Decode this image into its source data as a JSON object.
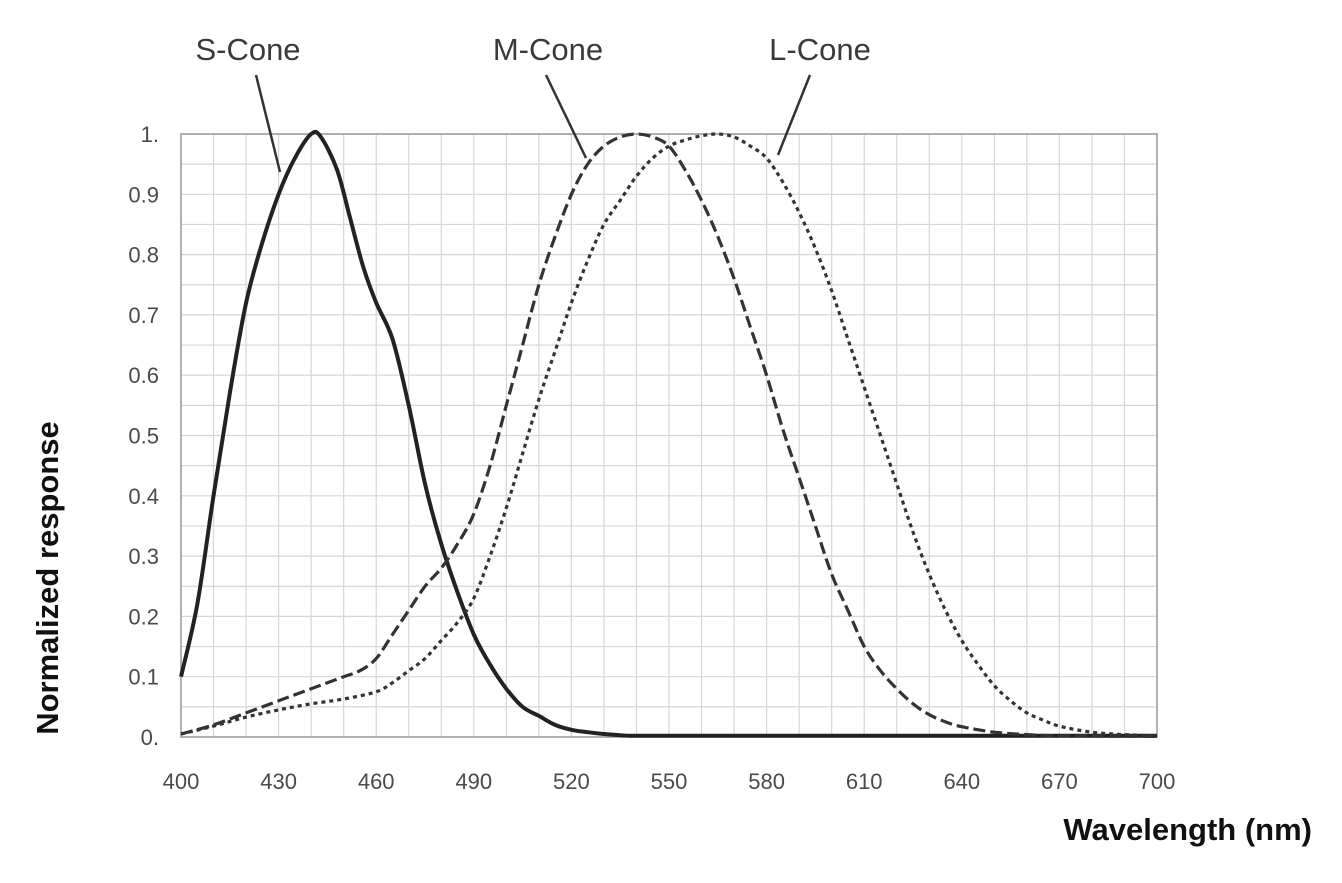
{
  "chart_data": {
    "type": "line",
    "title": "",
    "xlabel": "Wavelength (nm)",
    "ylabel": "Normalized response",
    "xlim": [
      400,
      700
    ],
    "ylim": [
      0,
      1
    ],
    "grid": true,
    "x_ticks": [
      "400",
      "430",
      "460",
      "490",
      "520",
      "550",
      "580",
      "610",
      "640",
      "670",
      "700"
    ],
    "x_tick_values": [
      400,
      430,
      460,
      490,
      520,
      550,
      580,
      610,
      640,
      670,
      700
    ],
    "y_ticks": [
      "0.",
      "0.1",
      "0.2",
      "0.3",
      "0.4",
      "0.5",
      "0.6",
      "0.7",
      "0.8",
      "0.9",
      "1."
    ],
    "y_tick_values": [
      0,
      0.1,
      0.2,
      0.3,
      0.4,
      0.5,
      0.6,
      0.7,
      0.8,
      0.9,
      1.0
    ],
    "series": [
      {
        "name": "S-Cone",
        "style": "solid",
        "color": "#222222",
        "points": [
          [
            400,
            0.1
          ],
          [
            405,
            0.22
          ],
          [
            410,
            0.4
          ],
          [
            415,
            0.57
          ],
          [
            420,
            0.72
          ],
          [
            425,
            0.82
          ],
          [
            430,
            0.9
          ],
          [
            435,
            0.96
          ],
          [
            440,
            1.0
          ],
          [
            443,
            0.995
          ],
          [
            448,
            0.94
          ],
          [
            452,
            0.86
          ],
          [
            456,
            0.78
          ],
          [
            460,
            0.72
          ],
          [
            465,
            0.66
          ],
          [
            470,
            0.55
          ],
          [
            475,
            0.42
          ],
          [
            480,
            0.32
          ],
          [
            485,
            0.24
          ],
          [
            490,
            0.17
          ],
          [
            495,
            0.12
          ],
          [
            500,
            0.08
          ],
          [
            505,
            0.05
          ],
          [
            510,
            0.035
          ],
          [
            515,
            0.02
          ],
          [
            520,
            0.012
          ],
          [
            525,
            0.008
          ],
          [
            530,
            0.005
          ],
          [
            535,
            0.003
          ],
          [
            540,
            0.002
          ],
          [
            560,
            0.002
          ],
          [
            600,
            0.002
          ],
          [
            650,
            0.002
          ],
          [
            700,
            0.002
          ]
        ]
      },
      {
        "name": "M-Cone",
        "style": "dashed",
        "color": "#333333",
        "points": [
          [
            400,
            0.005
          ],
          [
            410,
            0.02
          ],
          [
            420,
            0.04
          ],
          [
            430,
            0.06
          ],
          [
            440,
            0.08
          ],
          [
            450,
            0.1
          ],
          [
            455,
            0.11
          ],
          [
            460,
            0.13
          ],
          [
            465,
            0.17
          ],
          [
            470,
            0.21
          ],
          [
            475,
            0.25
          ],
          [
            480,
            0.28
          ],
          [
            485,
            0.32
          ],
          [
            490,
            0.37
          ],
          [
            495,
            0.45
          ],
          [
            500,
            0.55
          ],
          [
            505,
            0.65
          ],
          [
            510,
            0.75
          ],
          [
            515,
            0.83
          ],
          [
            520,
            0.9
          ],
          [
            525,
            0.95
          ],
          [
            530,
            0.98
          ],
          [
            535,
            0.995
          ],
          [
            540,
            1.0
          ],
          [
            545,
            0.995
          ],
          [
            550,
            0.98
          ],
          [
            555,
            0.94
          ],
          [
            560,
            0.89
          ],
          [
            565,
            0.83
          ],
          [
            570,
            0.76
          ],
          [
            575,
            0.68
          ],
          [
            580,
            0.6
          ],
          [
            585,
            0.51
          ],
          [
            590,
            0.43
          ],
          [
            595,
            0.35
          ],
          [
            600,
            0.27
          ],
          [
            605,
            0.21
          ],
          [
            610,
            0.15
          ],
          [
            615,
            0.11
          ],
          [
            620,
            0.08
          ],
          [
            625,
            0.055
          ],
          [
            630,
            0.037
          ],
          [
            635,
            0.025
          ],
          [
            640,
            0.017
          ],
          [
            650,
            0.008
          ],
          [
            660,
            0.004
          ],
          [
            670,
            0.002
          ],
          [
            700,
            0.001
          ]
        ]
      },
      {
        "name": "L-Cone",
        "style": "dotted",
        "color": "#333333",
        "points": [
          [
            400,
            0.005
          ],
          [
            410,
            0.018
          ],
          [
            420,
            0.033
          ],
          [
            430,
            0.045
          ],
          [
            440,
            0.055
          ],
          [
            450,
            0.063
          ],
          [
            460,
            0.075
          ],
          [
            465,
            0.09
          ],
          [
            470,
            0.11
          ],
          [
            475,
            0.13
          ],
          [
            480,
            0.16
          ],
          [
            485,
            0.19
          ],
          [
            490,
            0.23
          ],
          [
            495,
            0.3
          ],
          [
            500,
            0.38
          ],
          [
            505,
            0.47
          ],
          [
            510,
            0.56
          ],
          [
            515,
            0.64
          ],
          [
            520,
            0.72
          ],
          [
            525,
            0.79
          ],
          [
            530,
            0.85
          ],
          [
            535,
            0.89
          ],
          [
            540,
            0.93
          ],
          [
            545,
            0.96
          ],
          [
            550,
            0.98
          ],
          [
            555,
            0.99
          ],
          [
            560,
            0.997
          ],
          [
            565,
            1.0
          ],
          [
            570,
            0.995
          ],
          [
            575,
            0.98
          ],
          [
            580,
            0.96
          ],
          [
            585,
            0.92
          ],
          [
            590,
            0.87
          ],
          [
            595,
            0.81
          ],
          [
            600,
            0.74
          ],
          [
            605,
            0.66
          ],
          [
            610,
            0.58
          ],
          [
            615,
            0.5
          ],
          [
            620,
            0.42
          ],
          [
            625,
            0.34
          ],
          [
            630,
            0.27
          ],
          [
            635,
            0.21
          ],
          [
            640,
            0.16
          ],
          [
            645,
            0.12
          ],
          [
            650,
            0.085
          ],
          [
            655,
            0.06
          ],
          [
            660,
            0.04
          ],
          [
            665,
            0.028
          ],
          [
            670,
            0.018
          ],
          [
            680,
            0.008
          ],
          [
            690,
            0.004
          ],
          [
            700,
            0.002
          ]
        ]
      }
    ]
  },
  "labels": {
    "s_cone": "S-Cone",
    "m_cone": "M-Cone",
    "l_cone": "L-Cone"
  }
}
